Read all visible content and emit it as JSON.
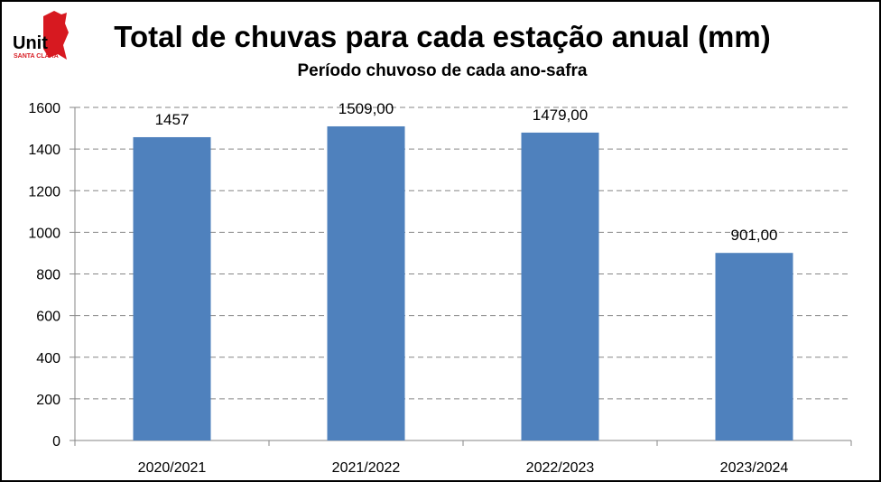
{
  "logo": {
    "brand": "Unit",
    "sub": "SANTA CLARA",
    "brand_color": "#d71920"
  },
  "colors": {
    "bar": "#4f81bd",
    "grid": "#868686",
    "axis": "#868686"
  },
  "chart_data": {
    "type": "bar",
    "title": "Total de chuvas para cada estação anual (mm)",
    "subtitle": "Período chuvoso de cada ano-safra",
    "xlabel": "",
    "ylabel": "",
    "categories": [
      "2020/2021",
      "2021/2022",
      "2022/2023",
      "2023/2024"
    ],
    "values": [
      1457,
      1509,
      1479,
      901
    ],
    "data_labels": [
      "1457",
      "1509,00",
      "1479,00",
      "901,00"
    ],
    "ylim": [
      0,
      1600
    ],
    "yticks": [
      0,
      200,
      400,
      600,
      800,
      1000,
      1200,
      1400,
      1600
    ],
    "grid": true,
    "grid_style": "dashed",
    "legend": "none"
  }
}
